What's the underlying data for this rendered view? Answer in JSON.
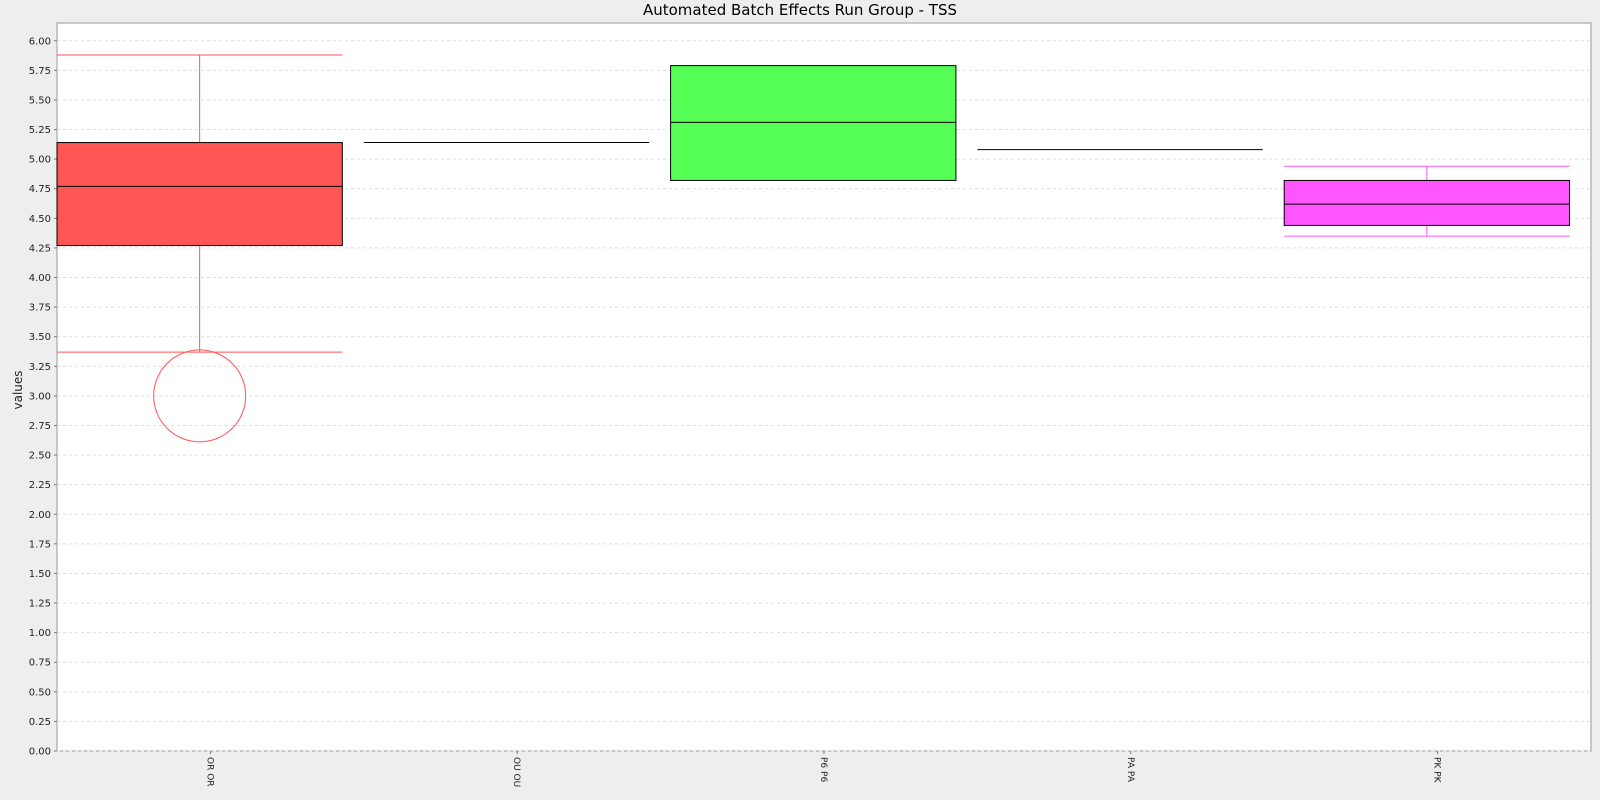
{
  "chart_data": {
    "type": "boxplot",
    "title": "Automated Batch Effects Run Group - TSS",
    "xlabel": "",
    "ylabel": "values",
    "ylim": [
      0,
      6.15
    ],
    "ytick_step": 0.25,
    "grid": true,
    "categories": [
      "OR   OR",
      "OU   OU",
      "P6   P6",
      "PA   PA",
      "PK   PK"
    ],
    "boxes": [
      {
        "category": "OR   OR",
        "color": "#ff5555",
        "whisker_color": "#ff5555",
        "q1": 4.27,
        "median": 4.77,
        "q3": 5.14,
        "whisker_low": 3.37,
        "whisker_high": 5.88,
        "outliers": [
          3.0
        ]
      },
      {
        "category": "OU   OU",
        "color": "#000000",
        "whisker_color": "#000000",
        "q1": 5.14,
        "median": 5.14,
        "q3": 5.14,
        "whisker_low": 5.14,
        "whisker_high": 5.14,
        "outliers": []
      },
      {
        "category": "P6   P6",
        "color": "#55ff55",
        "whisker_color": "#000000",
        "q1": 4.82,
        "median": 5.31,
        "q3": 5.79,
        "whisker_low": 4.82,
        "whisker_high": 5.79,
        "outliers": []
      },
      {
        "category": "PA   PA",
        "color": "#000000",
        "whisker_color": "#000000",
        "q1": 5.08,
        "median": 5.08,
        "q3": 5.08,
        "whisker_low": 5.08,
        "whisker_high": 5.08,
        "outliers": []
      },
      {
        "category": "PK   PK",
        "color": "#ff55ff",
        "whisker_color": "#ff55ff",
        "q1": 4.44,
        "median": 4.62,
        "q3": 4.82,
        "whisker_low": 4.35,
        "whisker_high": 4.94,
        "outliers": []
      }
    ]
  }
}
